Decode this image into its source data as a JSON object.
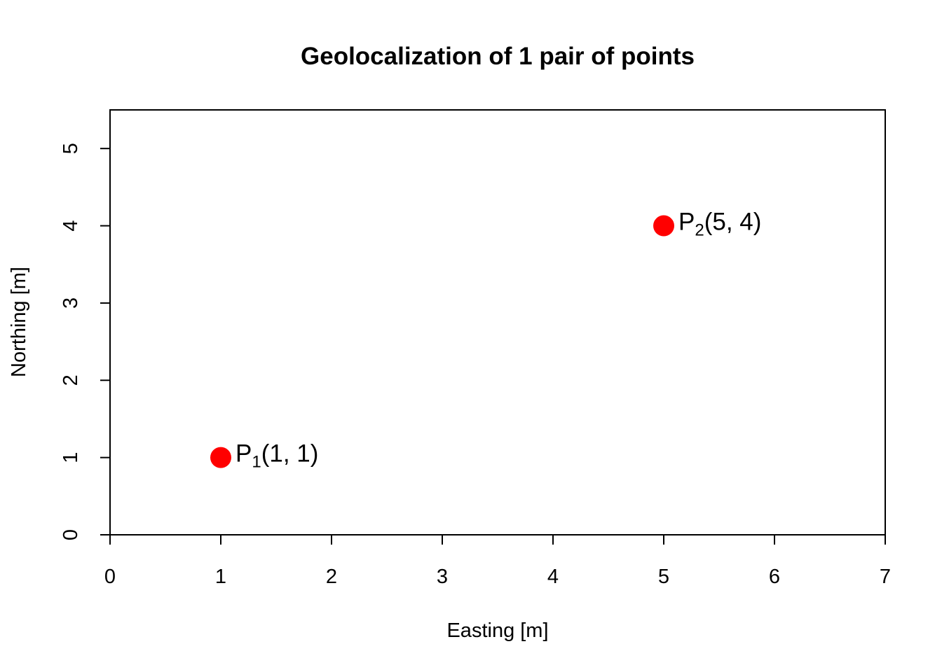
{
  "chart_data": {
    "type": "scatter",
    "title": "Geolocalization of 1 pair of points",
    "xlabel": "Easting [m]",
    "ylabel": "Northing [m]",
    "xlim": [
      0,
      7
    ],
    "ylim": [
      0,
      5.5
    ],
    "xticks": [
      0,
      1,
      2,
      3,
      4,
      5,
      6,
      7
    ],
    "yticks": [
      0,
      1,
      2,
      3,
      4,
      5
    ],
    "grid": false,
    "legend": "none",
    "point_color": "#ff0000",
    "points": [
      {
        "name": "P",
        "sub": "1",
        "coords": "(1, 1)",
        "x": 1,
        "y": 1
      },
      {
        "name": "P",
        "sub": "2",
        "coords": "(5, 4)",
        "x": 5,
        "y": 4
      }
    ]
  }
}
